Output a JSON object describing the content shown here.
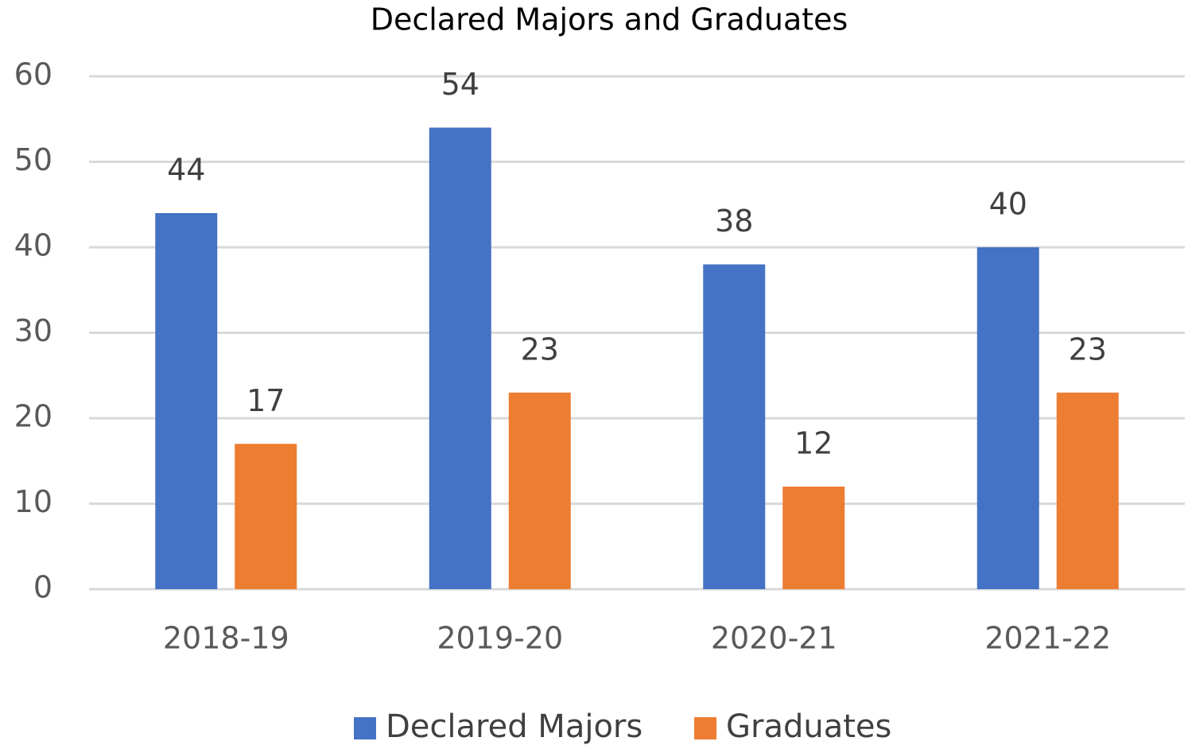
{
  "chart_data": {
    "type": "bar",
    "title": "Declared Majors and Graduates",
    "categories": [
      "2018-19",
      "2019-20",
      "2020-21",
      "2021-22"
    ],
    "series": [
      {
        "name": "Declared Majors",
        "color": "#4472c4",
        "values": [
          44,
          54,
          38,
          40
        ]
      },
      {
        "name": "Graduates",
        "color": "#ed7d31",
        "values": [
          17,
          23,
          12,
          23
        ]
      }
    ],
    "ylim": [
      0,
      60
    ],
    "yticks": [
      0,
      10,
      20,
      30,
      40,
      50,
      60
    ],
    "grid": true,
    "legend": "bottom"
  }
}
